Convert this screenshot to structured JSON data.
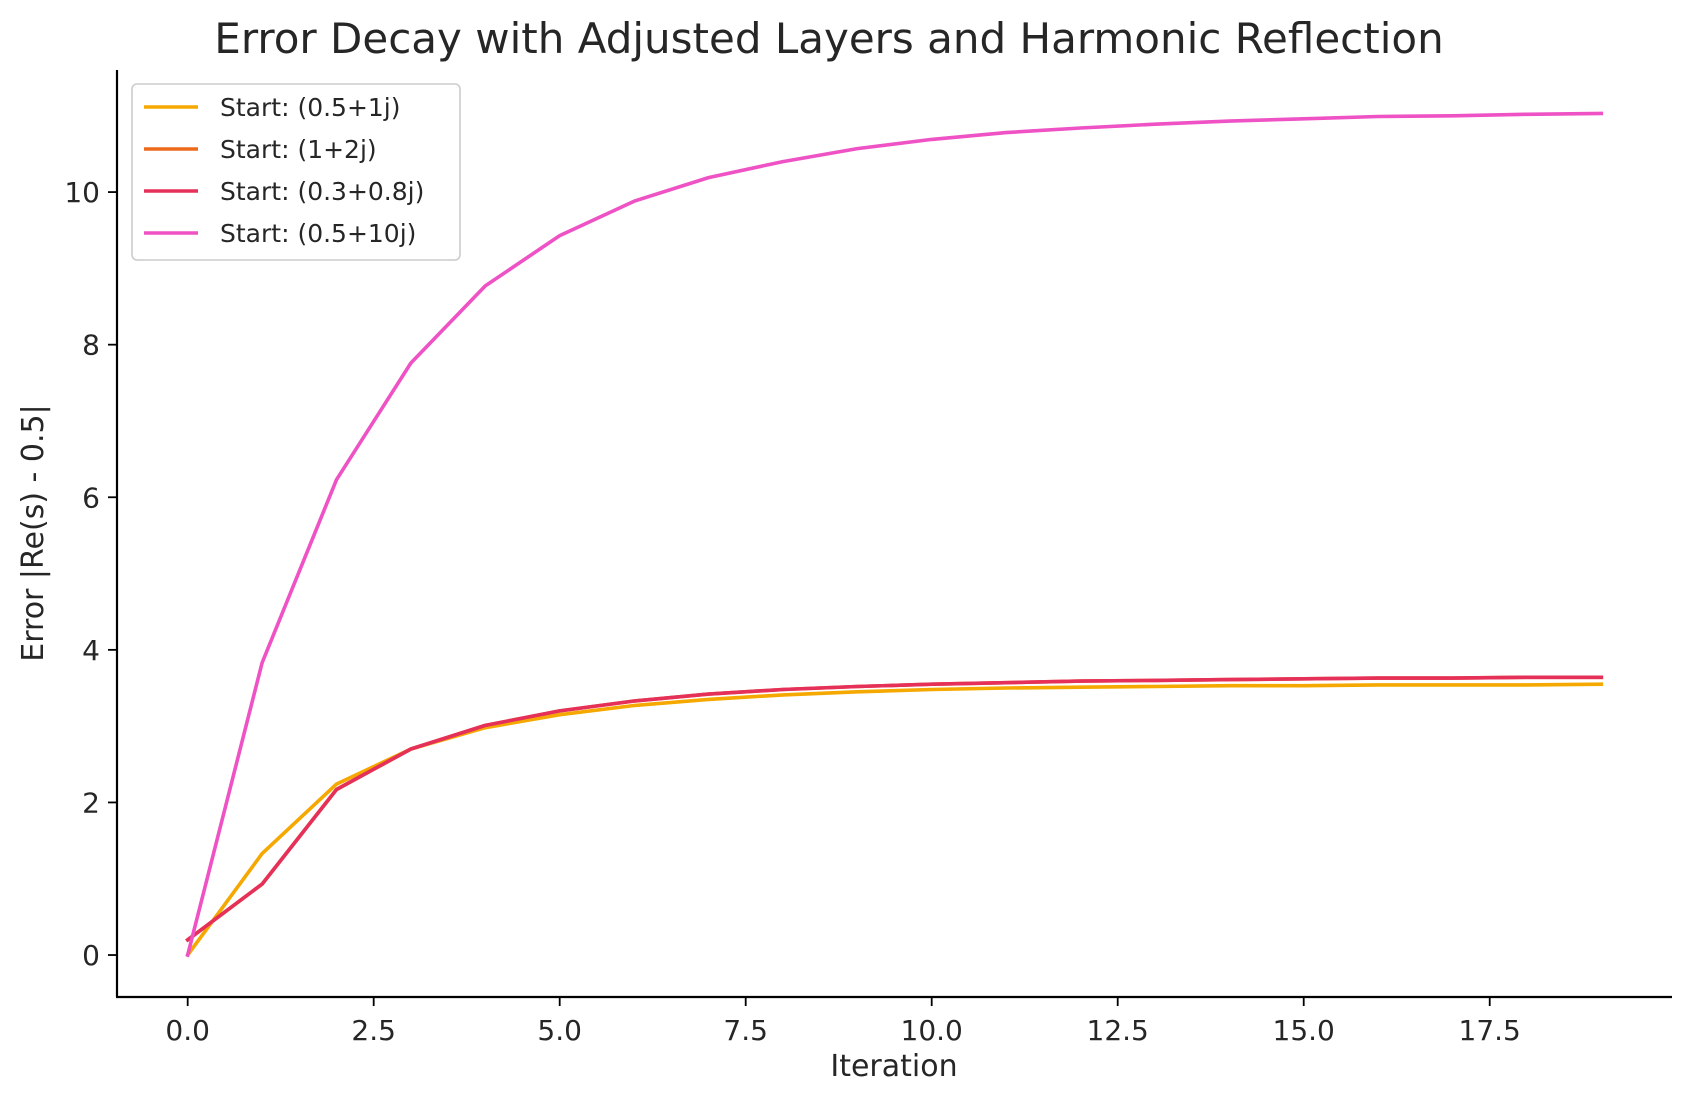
{
  "chart_data": {
    "type": "line",
    "title": "Error Decay with Adjusted Layers and Harmonic Reflection",
    "xlabel": "Iteration",
    "ylabel": "Error |Re(s) - 0.5|",
    "xlim": [
      -0.95,
      19.95
    ],
    "ylim": [
      -0.55,
      11.6
    ],
    "xticks": [
      0.0,
      2.5,
      5.0,
      7.5,
      10.0,
      12.5,
      15.0,
      17.5
    ],
    "xtick_labels": [
      "0.0",
      "2.5",
      "5.0",
      "7.5",
      "10.0",
      "12.5",
      "15.0",
      "17.5"
    ],
    "yticks": [
      0,
      2,
      4,
      6,
      8,
      10
    ],
    "ytick_labels": [
      "0",
      "2",
      "4",
      "6",
      "8",
      "10"
    ],
    "grid": false,
    "legend_position": "top-left",
    "x": [
      0,
      1,
      2,
      3,
      4,
      5,
      6,
      7,
      8,
      9,
      10,
      11,
      12,
      13,
      14,
      15,
      16,
      17,
      18,
      19
    ],
    "series": [
      {
        "name": "Start: (0.5+1j)",
        "color": "#F5A800",
        "values": [
          0.0,
          1.33,
          2.24,
          2.7,
          2.98,
          3.15,
          3.27,
          3.35,
          3.41,
          3.45,
          3.48,
          3.5,
          3.51,
          3.52,
          3.53,
          3.53,
          3.54,
          3.54,
          3.54,
          3.55
        ]
      },
      {
        "name": "Start: (1+2j)",
        "color": "#EE6A1B",
        "values": [
          0.2,
          0.93,
          2.17,
          2.7,
          3.01,
          3.2,
          3.33,
          3.42,
          3.48,
          3.52,
          3.55,
          3.57,
          3.59,
          3.6,
          3.61,
          3.62,
          3.63,
          3.63,
          3.64,
          3.64
        ]
      },
      {
        "name": "Start: (0.3+0.8j)",
        "color": "#E5305A",
        "values": [
          0.2,
          0.93,
          2.17,
          2.7,
          3.01,
          3.2,
          3.33,
          3.42,
          3.48,
          3.52,
          3.55,
          3.57,
          3.59,
          3.6,
          3.61,
          3.62,
          3.63,
          3.63,
          3.64,
          3.64
        ]
      },
      {
        "name": "Start: (0.5+10j)",
        "color": "#EE52C4",
        "values": [
          0.0,
          3.83,
          6.23,
          7.76,
          8.77,
          9.43,
          9.88,
          10.19,
          10.4,
          10.57,
          10.69,
          10.78,
          10.84,
          10.89,
          10.93,
          10.96,
          10.99,
          11.0,
          11.02,
          11.03
        ]
      }
    ]
  }
}
